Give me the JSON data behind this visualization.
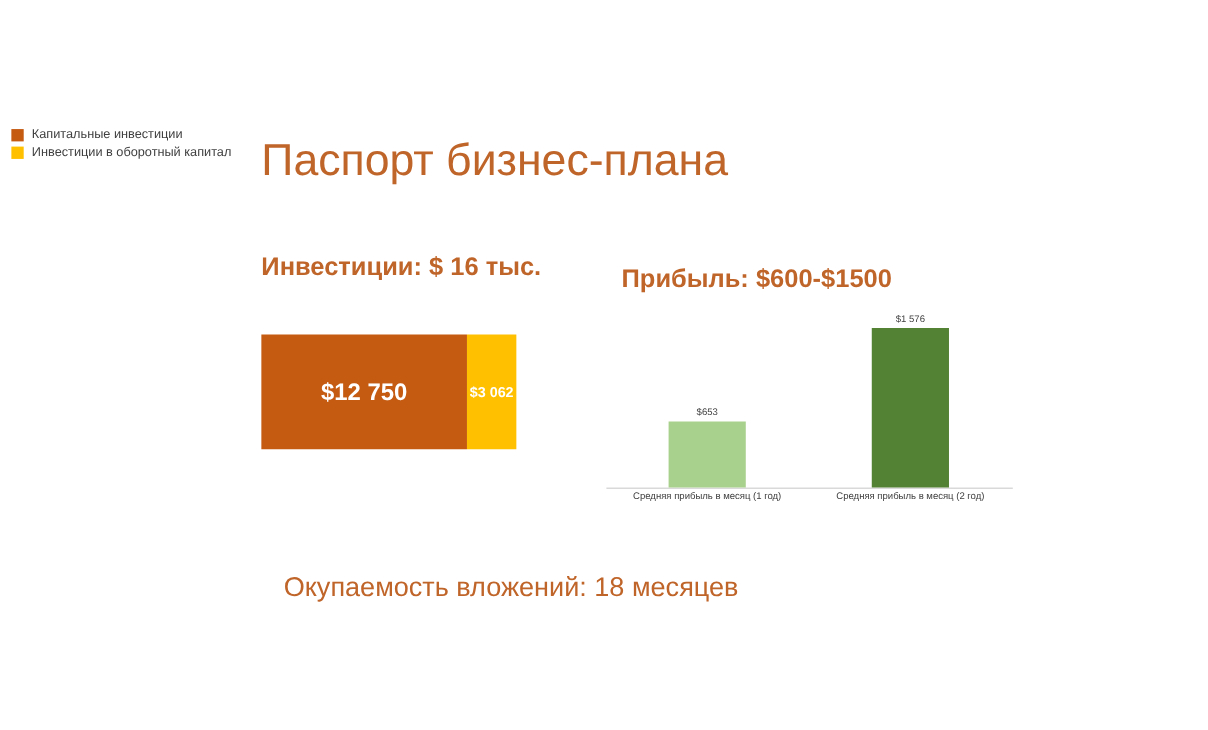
{
  "chart_data": [
    {
      "type": "bar",
      "title": "Паспорт бизнес-плана",
      "subtitle": "Инвестиции: $ 16 тыс.",
      "orientation": "horizontal",
      "stacked": true,
      "categories": [
        null
      ],
      "legend": "left",
      "series": [
        {
          "name": "Капитальные инвестиции",
          "color": "#c55a11",
          "values": [
            12750
          ],
          "value_labels": [
            "$12 750"
          ]
        },
        {
          "name": "Инвестиции в оборотный капитал",
          "color": "#ffc000",
          "values": [
            3062
          ],
          "value_labels": [
            "$3 062"
          ]
        }
      ],
      "annotations": [
        "Окупаемость вложений: 18 месяцев"
      ]
    },
    {
      "type": "bar",
      "title": "Прибыль: $600-$1500",
      "categories": [
        "Средняя прибыль в месяц (1 год)",
        "Средняя прибыль в месяц (2 год)"
      ],
      "values": [
        653,
        1576
      ],
      "colors": [
        "#a9d18e",
        "#548235"
      ],
      "value_labels": [
        "$653",
        "$1 576"
      ]
    }
  ]
}
